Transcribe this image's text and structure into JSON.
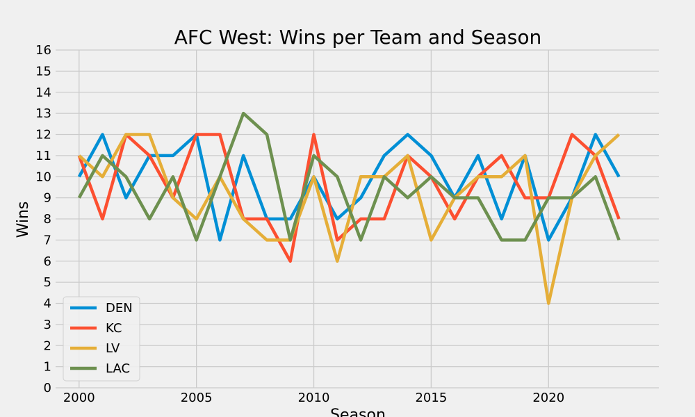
{
  "chart_data": {
    "type": "line",
    "title": "AFC West: Wins per Team and Season",
    "xlabel": "Season",
    "ylabel": "Wins",
    "xlim": [
      1999,
      2024.7
    ],
    "ylim": [
      0,
      16
    ],
    "xticks": [
      2000,
      2005,
      2010,
      2015,
      2020
    ],
    "yticks": [
      0,
      1,
      2,
      3,
      4,
      5,
      6,
      7,
      8,
      9,
      10,
      11,
      12,
      13,
      14,
      15,
      16
    ],
    "grid": true,
    "legend_position": "lower-left",
    "x": [
      2000,
      2001,
      2002,
      2003,
      2004,
      2005,
      2006,
      2007,
      2008,
      2009,
      2010,
      2011,
      2012,
      2013,
      2014,
      2015,
      2016,
      2017,
      2018,
      2019,
      2020,
      2021,
      2022,
      2023
    ],
    "series": [
      {
        "name": "DEN",
        "color": "#008fd5",
        "values": [
          10,
          12,
          9,
          11,
          11,
          12,
          7,
          11,
          8,
          8,
          10,
          8,
          9,
          11,
          12,
          11,
          9,
          11,
          8,
          11,
          7,
          9,
          12,
          10
        ]
      },
      {
        "name": "KC",
        "color": "#fc4f30",
        "values": [
          11,
          8,
          12,
          11,
          9,
          12,
          12,
          8,
          8,
          6,
          12,
          7,
          8,
          8,
          11,
          10,
          8,
          10,
          11,
          9,
          9,
          12,
          11,
          8
        ]
      },
      {
        "name": "LV",
        "color": "#e5ae38",
        "values": [
          11,
          10,
          12,
          12,
          9,
          8,
          10,
          8,
          7,
          7,
          10,
          6,
          10,
          10,
          11,
          7,
          9,
          10,
          10,
          11,
          4,
          9,
          11,
          12
        ]
      },
      {
        "name": "LAC",
        "color": "#6d904f",
        "values": [
          9,
          11,
          10,
          8,
          10,
          7,
          10,
          13,
          12,
          7,
          11,
          10,
          7,
          10,
          9,
          10,
          9,
          9,
          7,
          7,
          9,
          9,
          10,
          7
        ]
      }
    ]
  }
}
